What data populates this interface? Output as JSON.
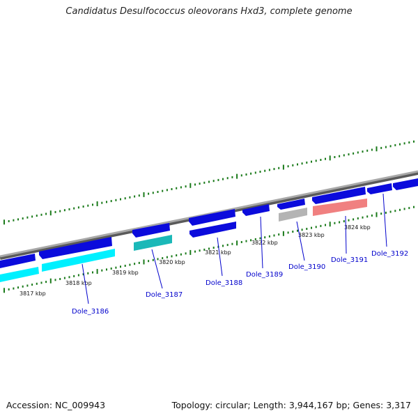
{
  "title": "Candidatus Desulfococcus oleovorans Hxd3, complete genome",
  "footer": {
    "accession": "Accession: NC_009943",
    "summary": "Topology: circular; Length: 3,944,167 bp; Genes: 3,317"
  },
  "colors": {
    "backbone": "#8c8c8c",
    "cds": "#0b0bdc",
    "cds_light": "#00f0ff",
    "cds_teal": "#1bb8b8",
    "cds_gray": "#b4b4b4",
    "cds_pink": "#f08080",
    "tick": "#1a7a1a",
    "label_line": "#0000cc"
  },
  "kbp_ticks": [
    "3817 kbp",
    "3818 kbp",
    "3819 kbp",
    "3820 kbp",
    "3821 kbp",
    "3822 kbp",
    "3823 kbp",
    "3824 kbp"
  ],
  "gene_labels": [
    "Dole_3186",
    "Dole_3187",
    "Dole_3188",
    "Dole_3189",
    "Dole_3190",
    "Dole_3191",
    "Dole_3192"
  ]
}
